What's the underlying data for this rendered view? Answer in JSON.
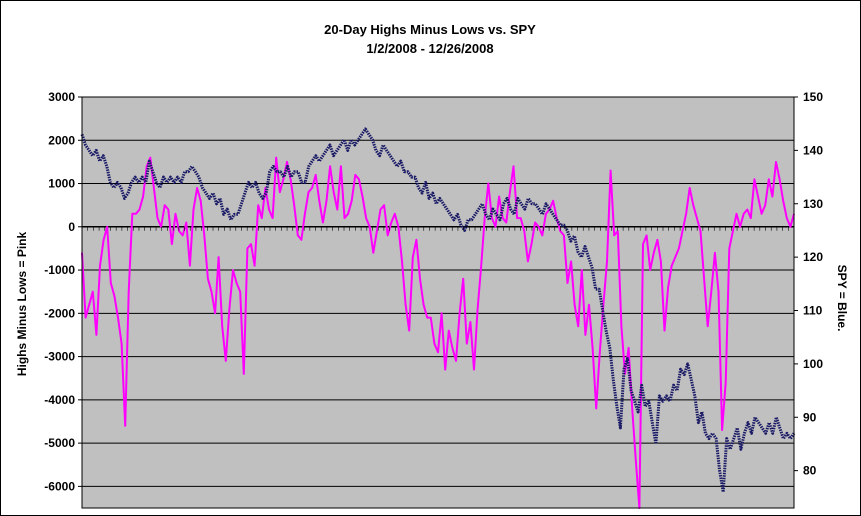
{
  "chart_data": {
    "type": "line",
    "title": "20-Day Highs Minus Lows vs. SPY",
    "subtitle": "1/2/2008 - 12/26/2008",
    "ylabel": "Highs Minus Lows = Pink",
    "y2label": "SPY = Blue.",
    "ylim": [
      -6500,
      3000
    ],
    "y2lim": [
      73,
      150
    ],
    "y_ticks": [
      3000,
      2000,
      1000,
      0,
      -1000,
      -2000,
      -3000,
      -4000,
      -5000,
      -6000
    ],
    "y_tick_labels": [
      "3000",
      "2000",
      "1000",
      "0",
      "-1000",
      "-2000",
      "-3000",
      "-4000",
      "-5000",
      "-6000"
    ],
    "y2_ticks": [
      150,
      140,
      130,
      120,
      110,
      100,
      90,
      80
    ],
    "y2_tick_labels": [
      "150",
      "140",
      "130",
      "120",
      "110",
      "100",
      "90",
      "80"
    ],
    "x_range": [
      0,
      250
    ],
    "grid": true,
    "legend": "none",
    "background_color": "#c0c0c0",
    "series": [
      {
        "axis": "left",
        "color": "#ff00ff",
        "values": [
          -600,
          -2100,
          -1800,
          -1500,
          -2500,
          -900,
          -300,
          0,
          -1300,
          -1600,
          -2100,
          -2700,
          -4600,
          -1500,
          300,
          300,
          400,
          700,
          1400,
          1600,
          900,
          200,
          0,
          500,
          400,
          -400,
          300,
          -100,
          -200,
          100,
          -900,
          400,
          900,
          600,
          -200,
          -1200,
          -1500,
          -2000,
          -700,
          -2300,
          -3100,
          -1900,
          -1000,
          -1300,
          -1500,
          -3400,
          -500,
          -400,
          -900,
          500,
          200,
          900,
          400,
          200,
          1600,
          800,
          1100,
          1500,
          1100,
          500,
          -200,
          -300,
          300,
          800,
          900,
          1200,
          600,
          100,
          600,
          1400,
          800,
          400,
          1400,
          200,
          300,
          600,
          1200,
          1100,
          700,
          200,
          0,
          -600,
          -100,
          400,
          500,
          -200,
          100,
          300,
          0,
          -800,
          -1800,
          -2400,
          -700,
          -300,
          -1200,
          -1800,
          -2100,
          -2100,
          -2700,
          -2900,
          -2000,
          -3300,
          -2400,
          -2800,
          -3100,
          -2000,
          -1200,
          -2700,
          -2200,
          -3300,
          -1900,
          -900,
          200,
          1000,
          200,
          0,
          700,
          200,
          100,
          800,
          1400,
          200,
          200,
          -100,
          -800,
          -400,
          100,
          0,
          -200,
          300,
          400,
          600,
          200,
          -100,
          -200,
          -1300,
          -800,
          -1800,
          -2300,
          -1000,
          -2500,
          -1800,
          -2800,
          -4200,
          -2900,
          -1800,
          -800,
          1300,
          -200,
          -100,
          -2300,
          -3400,
          -2800,
          -4200,
          -5400,
          -6500,
          -400,
          -200,
          -1000,
          -600,
          -300,
          -800,
          -2400,
          -1400,
          -900,
          -700,
          -500,
          -100,
          300,
          900,
          500,
          200,
          -100,
          -1200,
          -2300,
          -1500,
          -600,
          -1500,
          -4700,
          -3600,
          -500,
          -100,
          300,
          0,
          300,
          400,
          200,
          1100,
          700,
          300,
          500,
          1100,
          700,
          1500,
          1100,
          600,
          200,
          0,
          300
        ]
      },
      {
        "axis": "right",
        "color": "#1a1a66",
        "values": [
          143,
          141,
          140,
          139,
          140,
          138,
          139,
          137,
          134,
          133,
          134,
          133,
          131,
          132,
          134,
          135,
          134,
          135,
          134,
          138,
          136,
          134,
          133,
          135,
          134,
          135,
          134,
          135,
          134,
          136,
          136,
          137,
          136,
          135,
          133,
          132,
          131,
          132,
          130,
          131,
          128,
          129,
          127,
          128,
          128,
          130,
          132,
          134,
          133,
          134,
          132,
          131,
          132,
          136,
          137,
          136,
          136,
          135,
          137,
          135,
          136,
          136,
          134,
          134,
          137,
          138,
          139,
          138,
          139,
          140,
          141,
          139,
          140,
          141,
          142,
          140,
          142,
          141,
          142,
          143,
          144,
          143,
          142,
          140,
          139,
          141,
          140,
          139,
          138,
          137,
          138,
          136,
          136,
          135,
          135,
          133,
          132,
          134,
          131,
          132,
          130,
          131,
          130,
          129,
          128,
          127,
          128,
          126,
          125,
          127,
          127,
          128,
          129,
          130,
          128,
          127,
          129,
          128,
          127,
          130,
          131,
          129,
          128,
          131,
          130,
          129,
          131,
          130,
          130,
          129,
          128,
          130,
          129,
          128,
          127,
          126,
          126,
          125,
          123,
          124,
          121,
          120,
          122,
          120,
          118,
          114,
          114,
          110,
          106,
          103,
          97,
          92,
          88,
          99,
          101,
          95,
          93,
          91,
          96,
          92,
          93,
          89,
          85,
          94,
          93,
          94,
          93,
          96,
          95,
          99,
          98,
          100,
          97,
          94,
          89,
          91,
          87,
          86,
          87,
          86,
          80,
          76,
          86,
          84,
          86,
          88,
          84,
          87,
          89,
          87,
          90,
          89,
          88,
          87,
          89,
          87,
          90,
          88,
          86,
          87,
          86,
          87
        ]
      }
    ]
  }
}
